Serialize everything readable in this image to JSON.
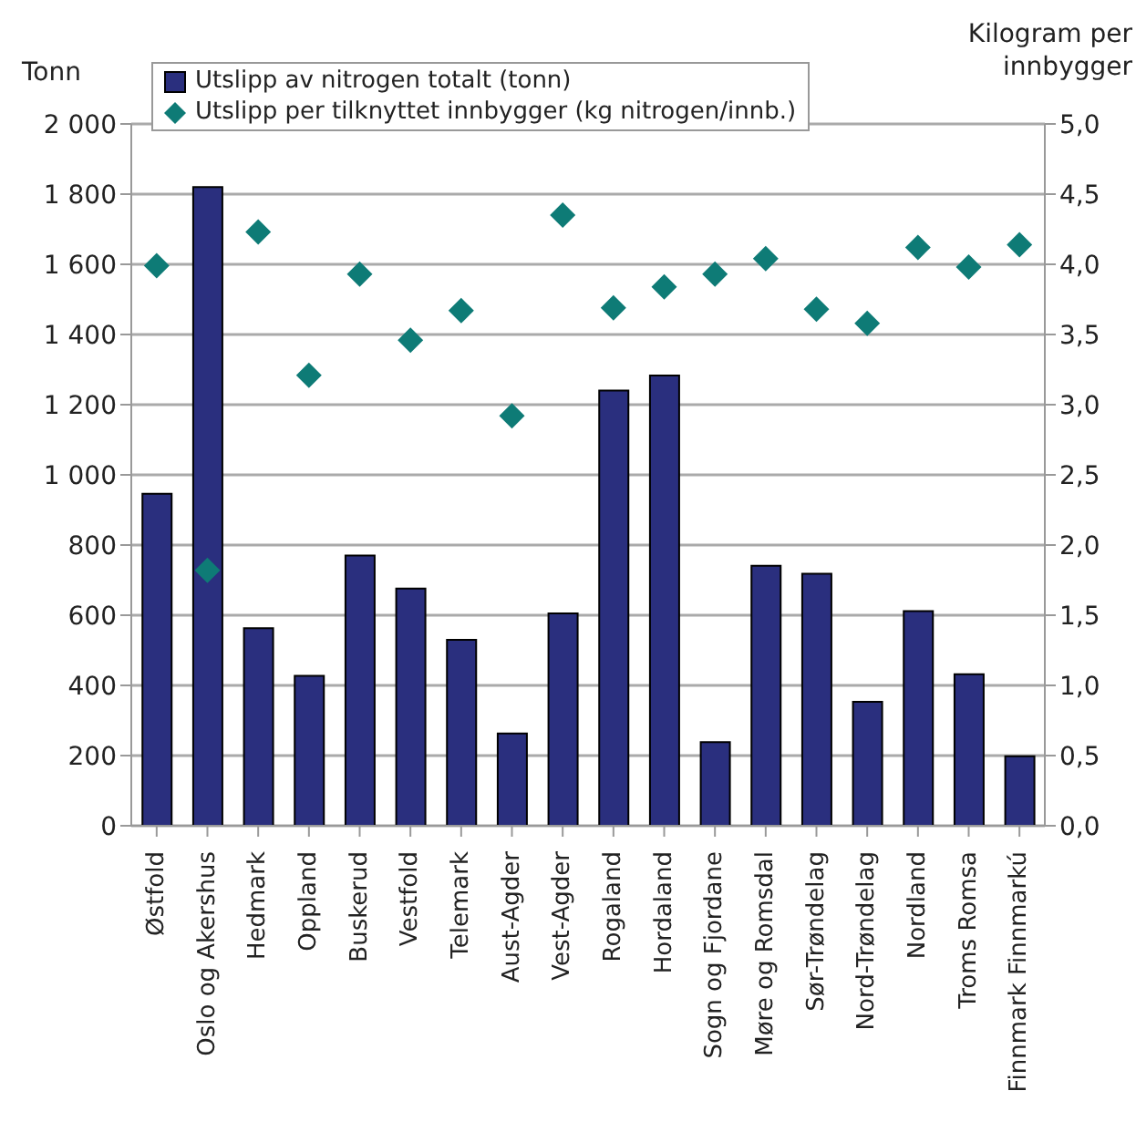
{
  "chart_data": {
    "type": "bar",
    "ylabel": "Tonn",
    "y2label": "Kilogram per innbygger",
    "categories": [
      "Østfold",
      "Oslo og Akershus",
      "Hedmark",
      "Oppland",
      "Buskerud",
      "Vestfold",
      "Telemark",
      "Aust-Agder",
      "Vest-Agder",
      "Rogaland",
      "Hordaland",
      "Sogn og Fjordane",
      "Møre og Romsdal",
      "Sør-Trøndelag",
      "Nord-Trøndelag",
      "Nordland",
      "Troms Romsa",
      "Finnmark Finnmarkú"
    ],
    "series": [
      {
        "name": "Utslipp av nitrogen totalt (tonn)",
        "color": "#2a2f7e",
        "values": [
          946,
          1820,
          563,
          427,
          770,
          676,
          530,
          263,
          605,
          1240,
          1283,
          238,
          741,
          718,
          353,
          612,
          432,
          198
        ]
      },
      {
        "name": "Utslipp per tilknyttet innbygger (kg nitrogen/innb.)",
        "type": "scatter",
        "axis": "y2",
        "marker": "diamond",
        "color": "#0e7b76",
        "values": [
          3.99,
          1.82,
          4.23,
          3.21,
          3.93,
          3.46,
          3.67,
          2.92,
          4.35,
          3.69,
          3.84,
          3.93,
          4.04,
          3.68,
          3.58,
          4.12,
          3.98,
          4.14
        ]
      }
    ],
    "ylim": [
      0,
      2000
    ],
    "yticks": [
      0,
      200,
      400,
      600,
      800,
      {
        "value": 1000,
        "label": "1 000"
      },
      {
        "value": 1200,
        "label": "1 200"
      },
      {
        "value": 1400,
        "label": "1 400"
      },
      {
        "value": 1600,
        "label": "1 600"
      },
      {
        "value": 1800,
        "label": "1 800"
      },
      {
        "value": 2000,
        "label": "2 000"
      }
    ],
    "y2lim": [
      0,
      5
    ],
    "y2ticks": [
      {
        "value": 0,
        "label": "0,0"
      },
      {
        "value": 0.5,
        "label": "0,5"
      },
      {
        "value": 1,
        "label": "1,0"
      },
      {
        "value": 1.5,
        "label": "1,5"
      },
      {
        "value": 2,
        "label": "2,0"
      },
      {
        "value": 2.5,
        "label": "2,5"
      },
      {
        "value": 3,
        "label": "3,0"
      },
      {
        "value": 3.5,
        "label": "3,5"
      },
      {
        "value": 4,
        "label": "4,0"
      },
      {
        "value": 4.5,
        "label": "4,5"
      },
      {
        "value": 5,
        "label": "5,0"
      }
    ],
    "grid": "y",
    "legend": "top"
  }
}
